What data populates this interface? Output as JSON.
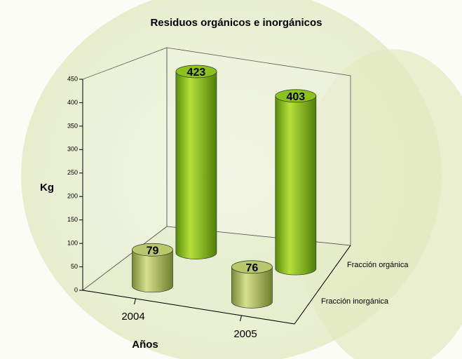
{
  "chart_data": {
    "type": "bar3d",
    "title": "Residuos orgánicos e inorgánicos",
    "x_label": "Años",
    "y_label": "Kg",
    "categories": [
      "2004",
      "2005"
    ],
    "series": [
      {
        "name": "Fracción inorgánica",
        "color": "#b8c86a",
        "values": [
          79,
          76
        ]
      },
      {
        "name": "Fracción orgánica",
        "color": "#8cc21e",
        "values": [
          423,
          403
        ]
      }
    ],
    "ylim": [
      0,
      450
    ],
    "yticks": [
      0,
      50,
      100,
      150,
      200,
      250,
      300,
      350,
      400,
      450
    ]
  }
}
